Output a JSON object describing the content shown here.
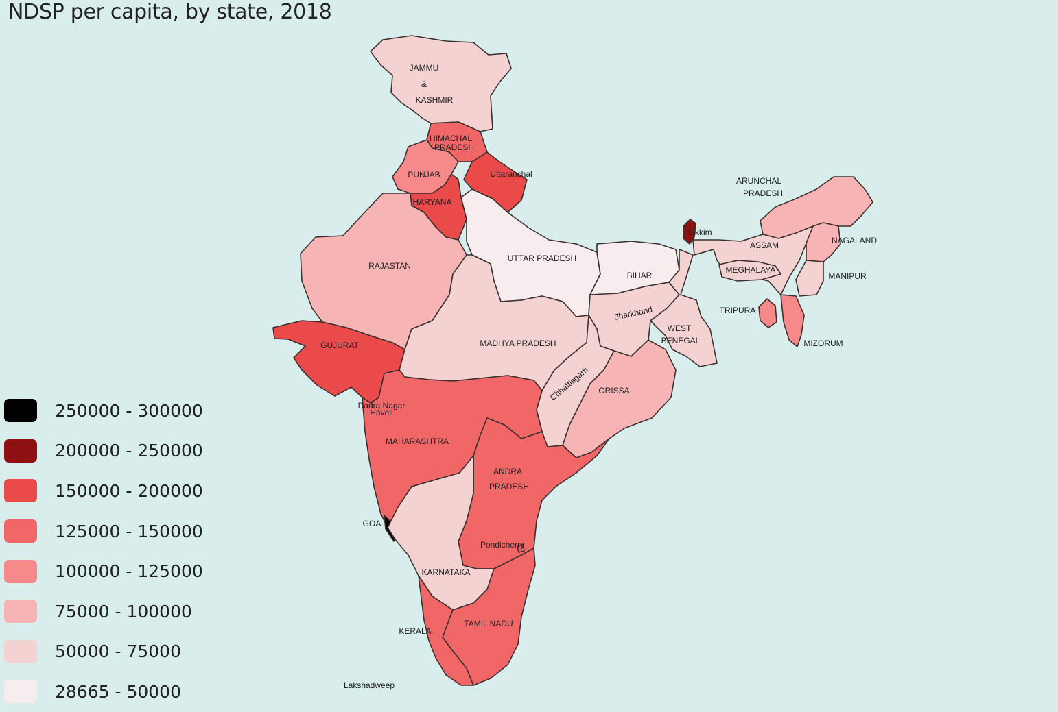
{
  "title": "NDSP per capita, by state, 2018",
  "colors": {
    "background": "#d9eeec",
    "border": "#3a3030"
  },
  "legend": [
    {
      "label": "250000 - 300000",
      "color": "#000000"
    },
    {
      "label": "200000 - 250000",
      "color": "#8e1010"
    },
    {
      "label": "150000 - 200000",
      "color": "#ea4a4a"
    },
    {
      "label": "125000 - 150000",
      "color": "#f16666"
    },
    {
      "label": "100000 - 125000",
      "color": "#f68a8a"
    },
    {
      "label": "75000 - 100000",
      "color": "#f6b4b4"
    },
    {
      "label": "50000 - 75000",
      "color": "#f5d2d2"
    },
    {
      "label": "28665 - 50000",
      "color": "#f7ecee"
    }
  ],
  "states": [
    {
      "id": "jammu-kashmir",
      "label_lines": [
        "JAMMU",
        "&",
        "KASHMIR"
      ],
      "color": "#f5d2d2"
    },
    {
      "id": "himachal-pradesh",
      "label_lines": [
        "HIMACHAL",
        "PRADESH"
      ],
      "color": "#f16666"
    },
    {
      "id": "punjab",
      "label_lines": [
        "PUNJAB"
      ],
      "color": "#f68a8a"
    },
    {
      "id": "uttaranchal",
      "label_lines": [
        "Uttaranchal"
      ],
      "color": "#ea4a4a"
    },
    {
      "id": "haryana",
      "label_lines": [
        "HARYANA"
      ],
      "color": "#ea4a4a"
    },
    {
      "id": "rajastan",
      "label_lines": [
        "RAJASTAN"
      ],
      "color": "#f6b4b4"
    },
    {
      "id": "uttar-pradesh",
      "label_lines": [
        "UTTAR PRADESH"
      ],
      "color": "#f7ecee"
    },
    {
      "id": "bihar",
      "label_lines": [
        "BIHAR"
      ],
      "color": "#f7ecee"
    },
    {
      "id": "sikkim",
      "label_lines": [
        "Sikkim"
      ],
      "color": "#8e1010"
    },
    {
      "id": "arunchal-pradesh",
      "label_lines": [
        "ARUNCHAL",
        "PRADESH"
      ],
      "color": "#f6b4b4"
    },
    {
      "id": "assam",
      "label_lines": [
        "ASSAM"
      ],
      "color": "#f5d2d2"
    },
    {
      "id": "nagaland",
      "label_lines": [
        "NAGALAND"
      ],
      "color": "#f6b4b4"
    },
    {
      "id": "meghalaya",
      "label_lines": [
        "MEGHALAYA"
      ],
      "color": "#f5d2d2"
    },
    {
      "id": "manipur",
      "label_lines": [
        "MANIPUR"
      ],
      "color": "#f5d2d2"
    },
    {
      "id": "tripura",
      "label_lines": [
        "TRIPURA"
      ],
      "color": "#f68a8a"
    },
    {
      "id": "mizorum",
      "label_lines": [
        "MIZORUM"
      ],
      "color": "#f68a8a"
    },
    {
      "id": "jharkhand",
      "label_lines": [
        "Jharkhand"
      ],
      "color": "#f5d2d2"
    },
    {
      "id": "west-benegal",
      "label_lines": [
        "WEST",
        "BENEGAL"
      ],
      "color": "#f5d2d2"
    },
    {
      "id": "gujurat",
      "label_lines": [
        "GUJURAT"
      ],
      "color": "#ea4a4a"
    },
    {
      "id": "madhya-pradesh",
      "label_lines": [
        "MADHYA PRADESH"
      ],
      "color": "#f5d2d2"
    },
    {
      "id": "chhattisgarh",
      "label_lines": [
        "Chhattisgarh"
      ],
      "color": "#f5d2d2"
    },
    {
      "id": "orissa",
      "label_lines": [
        "ORISSA"
      ],
      "color": "#f6b4b4"
    },
    {
      "id": "dadra-nagar-haveli",
      "label_lines": [
        "Dadra Nagar",
        "Haveli"
      ],
      "color": "#ffffff"
    },
    {
      "id": "maharashtra",
      "label_lines": [
        "MAHARASHTRA"
      ],
      "color": "#f16666"
    },
    {
      "id": "andra-pradesh",
      "label_lines": [
        "ANDRA",
        "PRADESH"
      ],
      "color": "#f16666"
    },
    {
      "id": "goa",
      "label_lines": [
        "GOA"
      ],
      "color": "#000000"
    },
    {
      "id": "pondicherry",
      "label_lines": [
        "Pondicherry"
      ],
      "color": "#f16666"
    },
    {
      "id": "karnataka",
      "label_lines": [
        "KARNATAKA"
      ],
      "color": "#f5d2d2"
    },
    {
      "id": "kerala",
      "label_lines": [
        "KERALA"
      ],
      "color": "#f16666"
    },
    {
      "id": "tamil-nadu",
      "label_lines": [
        "TAMIL NADU"
      ],
      "color": "#f16666"
    },
    {
      "id": "lakshadweep",
      "label_lines": [
        "Lakshadweep"
      ],
      "color": ""
    }
  ]
}
